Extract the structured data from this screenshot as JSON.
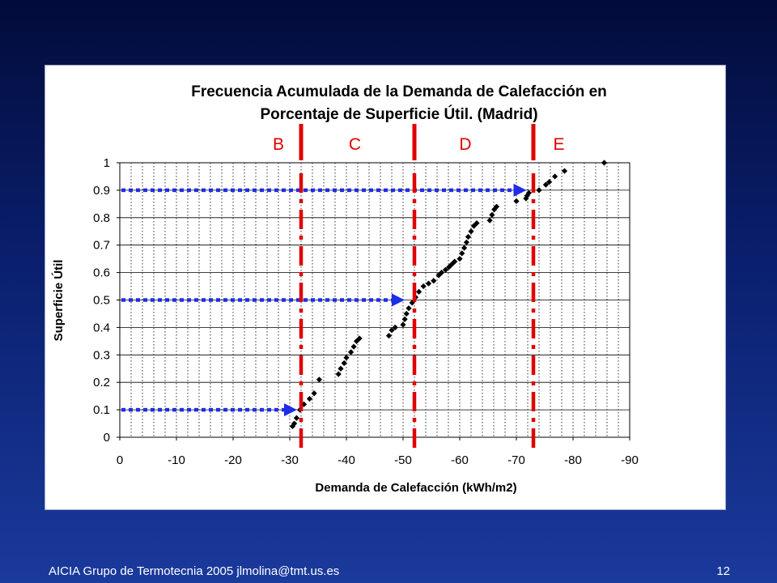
{
  "slide": {
    "footer_left": "AICIA Grupo de Termotecnia 2005   jlmolina@tmt.us.es",
    "page_number": "12"
  },
  "chart_data": {
    "type": "scatter",
    "title_line1": "Frecuencia Acumulada de la Demanda de Calefacción en",
    "title_line2": "Porcentaje de Superficie Útil. (Madrid)",
    "xlabel": "Demanda de Calefacción (kWh/m2)",
    "ylabel": "Superficie Útil",
    "xlim": [
      0,
      -90
    ],
    "ylim": [
      0,
      1
    ],
    "x_ticks": [
      "0",
      "-10",
      "-20",
      "-30",
      "-40",
      "-50",
      "-60",
      "-70",
      "-80",
      "-90"
    ],
    "y_ticks": [
      "0",
      "0.1",
      "0.2",
      "0.3",
      "0.4",
      "0.5",
      "0.6",
      "0.7",
      "0.8",
      "0.9",
      "1"
    ],
    "grid": {
      "horizontal_major": true,
      "vertical_minor_dotted": true
    },
    "series": [
      {
        "color": "#000000",
        "marker": "diamond",
        "points": [
          [
            -30.5,
            0.04
          ],
          [
            -30.8,
            0.05
          ],
          [
            -31.2,
            0.07
          ],
          [
            -31.8,
            0.1
          ],
          [
            -32.5,
            0.12
          ],
          [
            -33.5,
            0.14
          ],
          [
            -34.3,
            0.16
          ],
          [
            -35.2,
            0.21
          ],
          [
            -38.6,
            0.23
          ],
          [
            -39.0,
            0.25
          ],
          [
            -39.6,
            0.27
          ],
          [
            -40.0,
            0.29
          ],
          [
            -40.8,
            0.31
          ],
          [
            -41.3,
            0.33
          ],
          [
            -41.8,
            0.35
          ],
          [
            -42.3,
            0.36
          ],
          [
            -47.5,
            0.37
          ],
          [
            -48.0,
            0.39
          ],
          [
            -48.6,
            0.4
          ],
          [
            -50.0,
            0.41
          ],
          [
            -50.3,
            0.43
          ],
          [
            -50.6,
            0.45
          ],
          [
            -51.0,
            0.47
          ],
          [
            -51.6,
            0.49
          ],
          [
            -52.2,
            0.51
          ],
          [
            -52.8,
            0.53
          ],
          [
            -53.6,
            0.55
          ],
          [
            -54.5,
            0.56
          ],
          [
            -55.4,
            0.57
          ],
          [
            -56.3,
            0.59
          ],
          [
            -56.8,
            0.6
          ],
          [
            -57.5,
            0.61
          ],
          [
            -58.1,
            0.62
          ],
          [
            -58.6,
            0.63
          ],
          [
            -59.1,
            0.64
          ],
          [
            -60.0,
            0.65
          ],
          [
            -60.4,
            0.67
          ],
          [
            -60.8,
            0.69
          ],
          [
            -61.2,
            0.71
          ],
          [
            -61.5,
            0.73
          ],
          [
            -62.0,
            0.75
          ],
          [
            -62.5,
            0.77
          ],
          [
            -63.0,
            0.78
          ],
          [
            -65.3,
            0.79
          ],
          [
            -65.7,
            0.81
          ],
          [
            -66.1,
            0.83
          ],
          [
            -66.5,
            0.84
          ],
          [
            -70.0,
            0.86
          ],
          [
            -71.7,
            0.87
          ],
          [
            -71.9,
            0.88
          ],
          [
            -72.2,
            0.89
          ],
          [
            -74.0,
            0.9
          ],
          [
            -75.2,
            0.92
          ],
          [
            -75.8,
            0.93
          ],
          [
            -76.8,
            0.95
          ],
          [
            -78.5,
            0.97
          ],
          [
            -85.5,
            1.0
          ]
        ]
      }
    ],
    "reference_arrows": [
      {
        "y": 0.1,
        "x_end": -31.0,
        "color": "#1e2de8"
      },
      {
        "y": 0.5,
        "x_end": -50.0,
        "color": "#1e2de8"
      },
      {
        "y": 0.9,
        "x_end": -71.5,
        "color": "#1e2de8"
      }
    ],
    "class_boundaries": [
      {
        "x": -32.0,
        "color": "#e00000"
      },
      {
        "x": -52.0,
        "color": "#e00000"
      },
      {
        "x": -73.0,
        "color": "#e00000"
      }
    ],
    "class_labels": [
      {
        "text": "B",
        "x": -28.0
      },
      {
        "text": "C",
        "x": -41.5
      },
      {
        "text": "D",
        "x": -61.0
      },
      {
        "text": "E",
        "x": -77.5
      }
    ]
  }
}
